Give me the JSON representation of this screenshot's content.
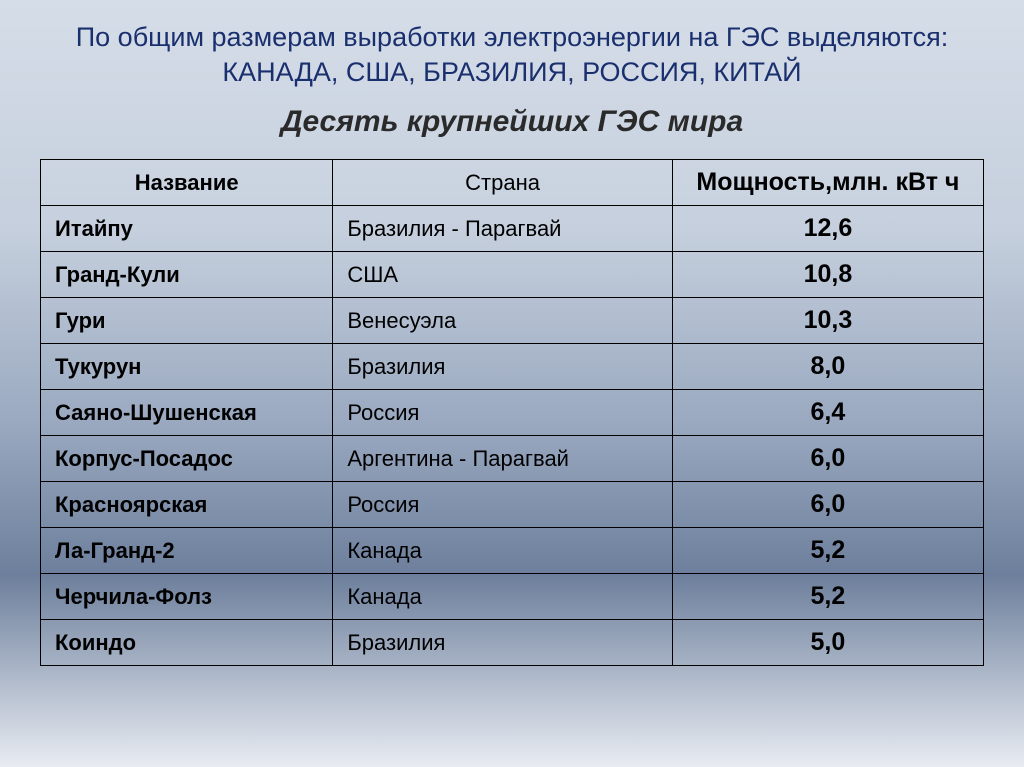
{
  "heading": "По общим размерам выработки электроэнергии на ГЭС выделяются: КАНАДА, США, БРАЗИЛИЯ, РОССИЯ, КИТАЙ",
  "subtitle": "Десять крупнейших ГЭС мира",
  "table": {
    "columns": [
      "Название",
      "Страна",
      "Мощность,млн. кВт ч"
    ],
    "rows": [
      {
        "name": "Итайпу",
        "country": "Бразилия - Парагвай",
        "power": "12,6"
      },
      {
        "name": "Гранд-Кули",
        "country": "США",
        "power": "10,8"
      },
      {
        "name": "Гури",
        "country": "Венесуэла",
        "power": "10,3"
      },
      {
        "name": "Тукурун",
        "country": "Бразилия",
        "power": "8,0"
      },
      {
        "name": "Саяно-Шушенская",
        "country": "Россия",
        "power": "6,4"
      },
      {
        "name": "Корпус-Посадос",
        "country": "Аргентина - Парагвай",
        "power": "6,0"
      },
      {
        "name": "Красноярская",
        "country": "Россия",
        "power": "6,0"
      },
      {
        "name": "Ла-Гранд-2",
        "country": "Канада",
        "power": "5,2"
      },
      {
        "name": "Черчила-Фолз",
        "country": "Канада",
        "power": "5,2"
      },
      {
        "name": "Коиндо",
        "country": "Бразилия",
        "power": "5,0"
      }
    ],
    "heading_color": "#1a2f6e",
    "heading_fontsize": 27,
    "subtitle_fontsize": 30,
    "border_color": "#000000",
    "cell_fontsize": 22,
    "power_fontsize": 25,
    "background_gradient_top": "#d5dde8",
    "background_gradient_mid": "#9aa9c0",
    "background_gradient_bottom": "#e8ecf2"
  }
}
